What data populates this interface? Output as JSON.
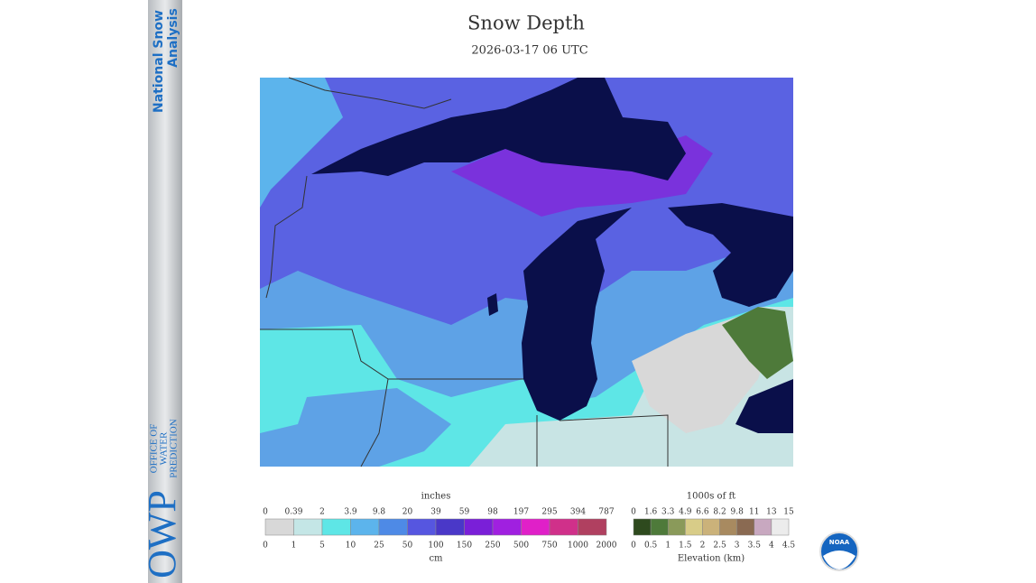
{
  "header": {
    "title": "Snow Depth",
    "subtitle": "2026-03-17 06 UTC"
  },
  "sidebar": {
    "top_lines": [
      "National Snow",
      "Analysis"
    ],
    "logo": "OWP",
    "logo_lines": [
      "OFFICE OF",
      "WATER",
      "PREDICTION"
    ]
  },
  "snow_legend": {
    "top_unit": "inches",
    "bottom_unit": "cm",
    "top_labels": [
      "0",
      "0.39",
      "2",
      "3.9",
      "9.8",
      "20",
      "39",
      "59",
      "98",
      "197",
      "295",
      "394",
      "787"
    ],
    "bottom_labels": [
      "0",
      "1",
      "5",
      "10",
      "25",
      "50",
      "100",
      "150",
      "250",
      "500",
      "750",
      "1000",
      "2000"
    ],
    "colors": [
      "#d8d8d8",
      "#c4e6e6",
      "#5ee6e6",
      "#5cb4ec",
      "#4e8ae6",
      "#5656e0",
      "#4a38c8",
      "#7a1fd8",
      "#a020e0",
      "#e020c8",
      "#d0308a",
      "#b04060"
    ]
  },
  "elevation_legend": {
    "top_unit": "1000s of ft",
    "bottom_unit": "Elevation (km)",
    "top_labels": [
      "0",
      "1.6",
      "3.3",
      "4.9",
      "6.6",
      "8.2",
      "9.8",
      "11",
      "13",
      "15"
    ],
    "bottom_labels": [
      "0",
      "0.5",
      "1",
      "1.5",
      "2",
      "2.5",
      "3",
      "3.5",
      "4",
      "4.5"
    ],
    "colors": [
      "#2e4a1e",
      "#4e7a3a",
      "#8a9a5a",
      "#d8cc88",
      "#cbb27a",
      "#a88a60",
      "#8a6a52",
      "#c8a8c0",
      "#ececec"
    ]
  },
  "logo_badge": "NOAA"
}
